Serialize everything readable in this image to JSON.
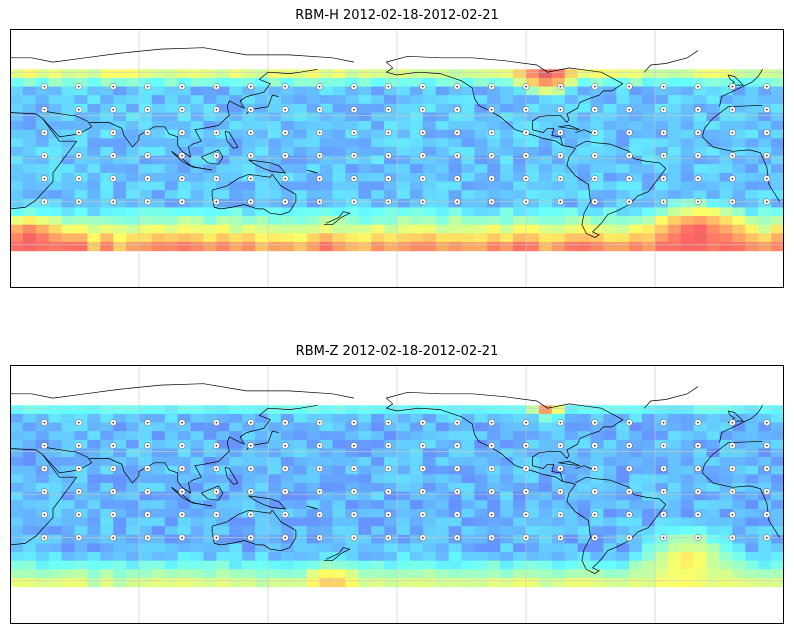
{
  "chart_data": [
    {
      "type": "heatmap",
      "title": "RBM-H 2012-02-18-2012-02-21",
      "xlabel": "",
      "ylabel": "",
      "projection": "equirectangular, centered on Pacific",
      "lon_range": [
        20,
        380
      ],
      "lat_range": [
        -90,
        90
      ],
      "data_lat_range": [
        -62,
        62
      ],
      "grid": true,
      "grid_lines_lon": [
        80,
        140,
        200,
        260,
        320
      ],
      "grid_lines_lat": [
        -60,
        -30,
        0,
        30,
        60
      ],
      "colormap": "jet",
      "color_range": [
        0,
        1
      ],
      "alpha": 0.6,
      "pattern": {
        "base": 0.28,
        "north_band": {
          "from_lat": 48,
          "peak_lat": 62,
          "peak_value": 0.72
        },
        "south_band": {
          "from_lat": -32,
          "peak_lat": -62,
          "peak_value": 0.88
        },
        "hotspots": [
          {
            "lon": 270,
            "lat": 58,
            "value": 0.95,
            "radius_deg": 18
          },
          {
            "lon": 340,
            "lat": -52,
            "value": 0.92,
            "radius_deg": 28
          },
          {
            "lon": 30,
            "lat": -55,
            "value": 0.9,
            "radius_deg": 18
          }
        ]
      }
    },
    {
      "type": "heatmap",
      "title": "RBM-Z 2012-02-18-2012-02-21",
      "xlabel": "",
      "ylabel": "",
      "projection": "equirectangular, centered on Pacific",
      "lon_range": [
        20,
        380
      ],
      "lat_range": [
        -90,
        90
      ],
      "data_lat_range": [
        -62,
        62
      ],
      "grid": true,
      "grid_lines_lon": [
        80,
        140,
        200,
        260,
        320
      ],
      "grid_lines_lat": [
        -60,
        -30,
        0,
        30,
        60
      ],
      "colormap": "jet",
      "color_range": [
        0,
        1
      ],
      "alpha": 0.6,
      "pattern": {
        "base": 0.26,
        "north_band": {
          "from_lat": 52,
          "peak_lat": 62,
          "peak_value": 0.45
        },
        "south_band": {
          "from_lat": -40,
          "peak_lat": -62,
          "peak_value": 0.62
        },
        "hotspots": [
          {
            "lon": 270,
            "lat": 60,
            "value": 0.85,
            "radius_deg": 10
          },
          {
            "lon": 335,
            "lat": -45,
            "value": 0.68,
            "radius_deg": 30
          },
          {
            "lon": 170,
            "lat": -62,
            "value": 0.72,
            "radius_deg": 18
          }
        ]
      }
    }
  ],
  "colors": {
    "coastline": "#000000",
    "grid": "#c8c8c8",
    "frame": "#000000",
    "station_marker": "#ffffff"
  },
  "icons": [
    "station-marker-icon"
  ]
}
